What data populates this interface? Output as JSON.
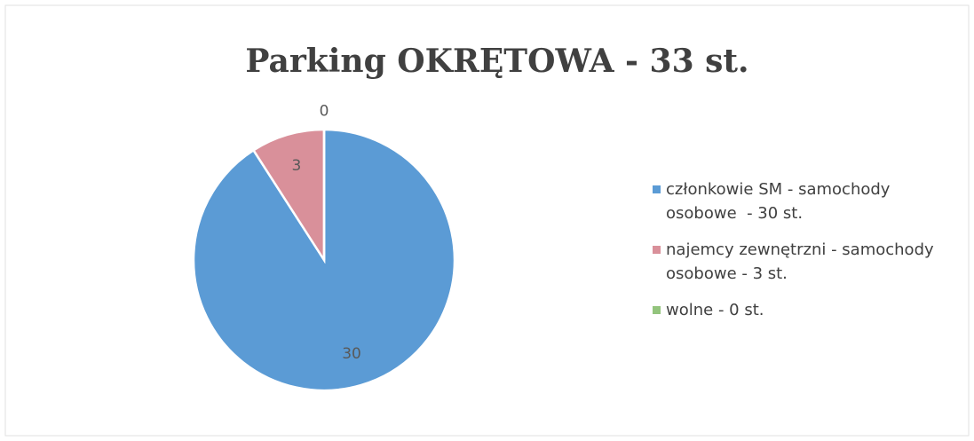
{
  "chart_data": {
    "type": "pie",
    "title": "Parking OKRĘTOWA - 33 st.",
    "categories": [
      "członkowie SM - samochody osobowe  - 30 st.",
      "najemcy zewnętrzni - samochody osobowe - 3 st.",
      "wolne - 0 st."
    ],
    "values": [
      30,
      3,
      0
    ],
    "colors": [
      "#5b9bd5",
      "#d9909a",
      "#93c47d"
    ]
  }
}
